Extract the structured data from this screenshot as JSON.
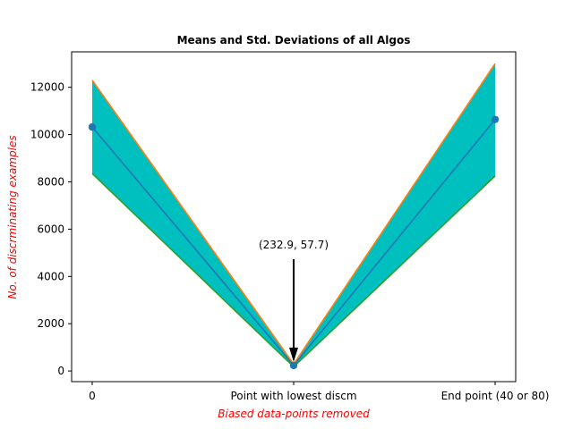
{
  "chart_data": {
    "type": "line",
    "title": "Means and Std. Deviations of all Algos",
    "xlabel": "Biased data-points removed",
    "ylabel": "No. of discrminating examples",
    "categories": [
      "0",
      "Point with lowest discm",
      "End point (40 or 80)"
    ],
    "ylim": [
      -450,
      13500
    ],
    "yticks": [
      0,
      2000,
      4000,
      6000,
      8000,
      10000,
      12000
    ],
    "series": [
      {
        "role": "mean",
        "values": [
          10320,
          232.9,
          10640
        ],
        "color": "#1f77b4",
        "markers": true
      },
      {
        "role": "upper",
        "values": [
          12300,
          290,
          13000
        ],
        "color": "#ff7f0e"
      },
      {
        "role": "lower",
        "values": [
          8350,
          176,
          8250
        ],
        "color": "#2ca02c"
      }
    ],
    "fill_color": "#00bfbf",
    "annotation": {
      "text": "(232.9, 57.7)",
      "x_index": 1,
      "y": 232.9,
      "text_y": 4850
    },
    "label_color": "#ff0000",
    "grid": false,
    "legend": "none"
  }
}
